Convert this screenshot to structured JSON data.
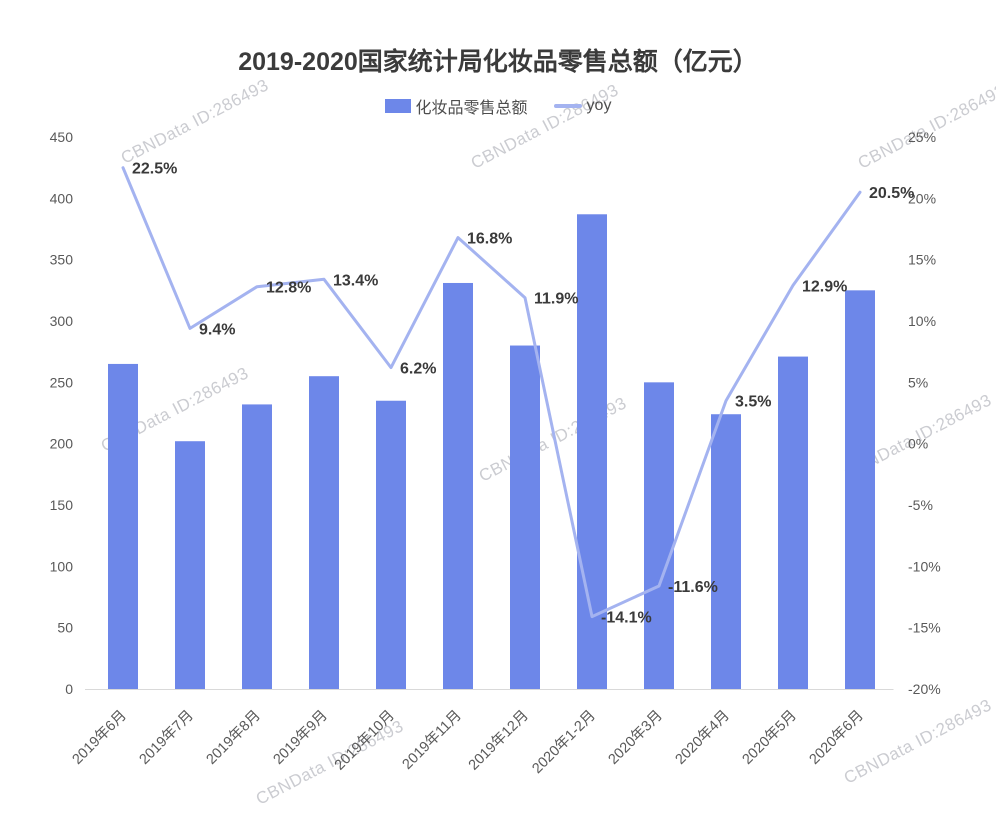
{
  "chart_data": {
    "type": "bar+line combo",
    "title": "2019-2020国家统计局化妆品零售总额（亿元）",
    "categories": [
      "2019年6月",
      "2019年7月",
      "2019年8月",
      "2019年9月",
      "2019年10月",
      "2019年11月",
      "2019年12月",
      "2020年1-2月",
      "2020年3月",
      "2020年4月",
      "2020年5月",
      "2020年6月"
    ],
    "series": [
      {
        "name": "化妆品零售总额",
        "type": "bar",
        "axis": "left",
        "color": "#6d87e9",
        "values": [
          265,
          202,
          232,
          255,
          235,
          331,
          280,
          387,
          250,
          224,
          271,
          325
        ]
      },
      {
        "name": "yoy",
        "type": "line",
        "axis": "right",
        "color": "#a4b3f0",
        "values": [
          22.5,
          9.4,
          12.8,
          13.4,
          6.2,
          16.8,
          11.9,
          -14.1,
          -11.6,
          3.5,
          12.9,
          20.5
        ],
        "point_labels": [
          "22.5%",
          "9.4%",
          "12.8%",
          "13.4%",
          "6.2%",
          "16.8%",
          "11.9%",
          "-14.1%",
          "-11.6%",
          "3.5%",
          "12.9%",
          "20.5%"
        ]
      }
    ],
    "left_axis": {
      "min": 0,
      "max": 450,
      "step": 50,
      "tick_labels": [
        "450",
        "400",
        "350",
        "300",
        "250",
        "200",
        "150",
        "100",
        "50",
        "0"
      ]
    },
    "right_axis": {
      "min": -20,
      "max": 25,
      "step": 5,
      "tick_labels": [
        "25%",
        "20%",
        "15%",
        "10%",
        "5%",
        "0%",
        "-5%",
        "-10%",
        "-15%",
        "-20%"
      ]
    },
    "grid": false,
    "legend_position": "top"
  },
  "watermark": {
    "text": "CBNData ID:286493",
    "color": "#cbccd1"
  },
  "colors": {
    "background": "#ffffff",
    "title_text": "#3b3b3b",
    "axis_text": "#595959",
    "data_label_text": "#3a3a3a",
    "axis_line": "#d9d9d9"
  }
}
